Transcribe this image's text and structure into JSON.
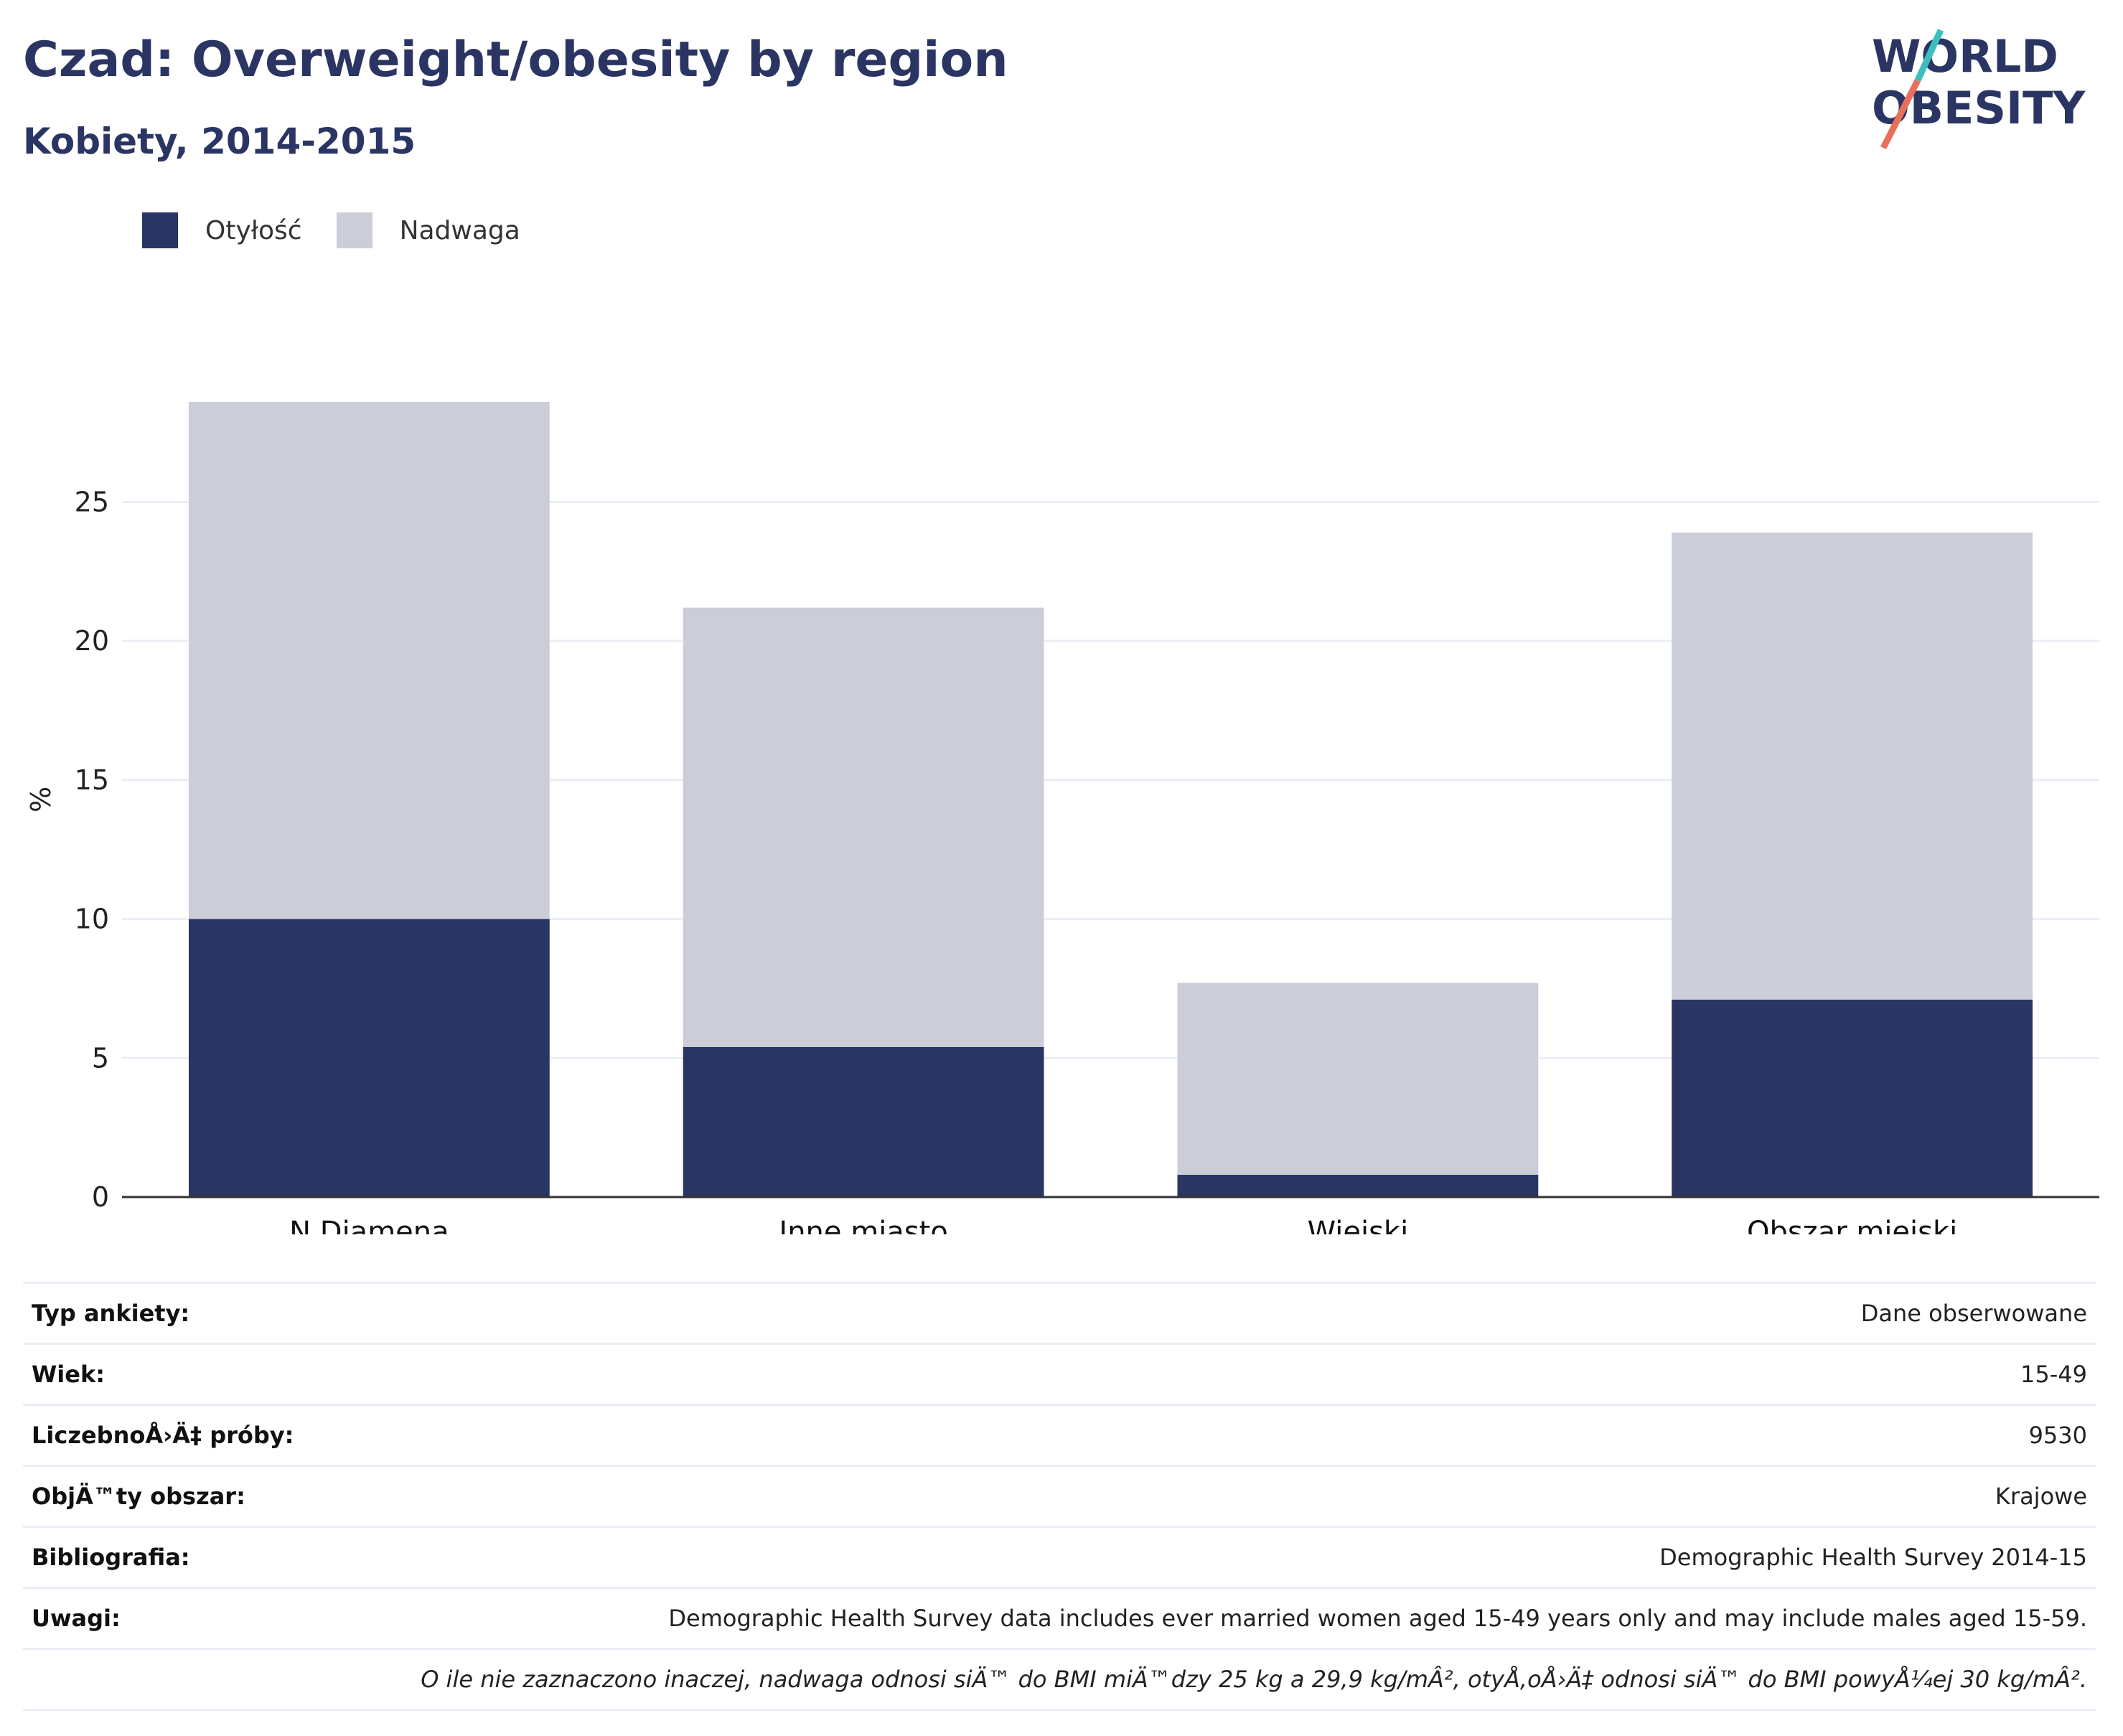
{
  "header": {
    "title": "Czad: Overweight/obesity by region",
    "subtitle": "Kobiety, 2014-2015"
  },
  "logo": {
    "line1": "WORLD",
    "line2": "OBESITY",
    "colors": {
      "text": "#2a3563",
      "slash_top": "#3dbfbf",
      "slash_bottom": "#e8705a"
    }
  },
  "legend": [
    {
      "label": "Otyłość",
      "color": "#2a3563"
    },
    {
      "label": "Nadwaga",
      "color": "#cbcdd8"
    }
  ],
  "chart_data": {
    "type": "bar",
    "stacked": true,
    "categories": [
      "N.Djamena",
      "Inne miasto",
      "Wiejski",
      "Obszar miejski"
    ],
    "series": [
      {
        "name": "Otyłość",
        "color": "#2a3563",
        "values": [
          10.0,
          5.4,
          0.8,
          7.1
        ]
      },
      {
        "name": "Nadwaga",
        "color": "#cbcdd8",
        "values": [
          18.6,
          15.8,
          6.9,
          16.8
        ]
      }
    ],
    "ylabel": "%",
    "ylim": [
      0,
      28.6
    ],
    "yticks": [
      0,
      5,
      10,
      15,
      20,
      25
    ],
    "grid": true,
    "legend_position": "top-left"
  },
  "info": [
    {
      "label": "Typ ankiety:",
      "value": "Dane obserwowane"
    },
    {
      "label": "Wiek:",
      "value": "15-49"
    },
    {
      "label": "LiczebnoÅ›Ä‡ próby:",
      "value": "9530"
    },
    {
      "label": "ObjÄ™ty obszar:",
      "value": "Krajowe"
    },
    {
      "label": "Bibliografia:",
      "value": "Demographic Health Survey 2014-15"
    },
    {
      "label": "Uwagi:",
      "value": "Demographic Health Survey data includes ever married women aged 15-49 years only and may include males aged 15-59."
    },
    {
      "label": "",
      "value": "O ile nie zaznaczono inaczej, nadwaga odnosi siÄ™ do BMI miÄ™dzy 25 kg a 29,9 kg/mÂ², otyÅ‚oÅ›Ä‡ odnosi siÄ™ do BMI powyÅ¼ej 30 kg/mÂ²."
    }
  ]
}
